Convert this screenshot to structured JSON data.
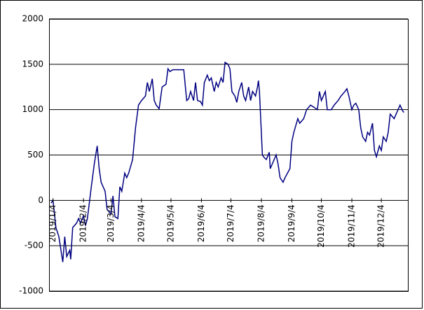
{
  "chart_data": {
    "type": "line",
    "x": [
      "2019/1/2",
      "2019/1/4",
      "2019/1/7",
      "2019/1/10",
      "2019/1/14",
      "2019/1/16",
      "2019/1/18",
      "2019/1/21",
      "2019/1/22",
      "2019/1/24",
      "2019/1/28",
      "2019/1/30",
      "2019/2/1",
      "2019/2/4",
      "2019/2/6",
      "2019/2/8",
      "2019/2/12",
      "2019/2/15",
      "2019/2/18",
      "2019/2/20",
      "2019/2/22",
      "2019/2/26",
      "2019/2/28",
      "2019/3/4",
      "2019/3/6",
      "2019/3/8",
      "2019/3/11",
      "2019/3/13",
      "2019/3/15",
      "2019/3/18",
      "2019/3/20",
      "2019/3/22",
      "2019/3/26",
      "2019/3/29",
      "2019/4/1",
      "2019/4/4",
      "2019/4/8",
      "2019/4/10",
      "2019/4/12",
      "2019/4/15",
      "2019/4/17",
      "2019/4/19",
      "2019/4/22",
      "2019/4/25",
      "2019/4/29",
      "2019/5/1",
      "2019/5/3",
      "2019/5/6",
      "2019/5/10",
      "2019/5/13",
      "2019/5/17",
      "2019/5/20",
      "2019/5/22",
      "2019/5/24",
      "2019/5/27",
      "2019/5/29",
      "2019/5/31",
      "2019/6/3",
      "2019/6/5",
      "2019/6/7",
      "2019/6/10",
      "2019/6/12",
      "2019/6/14",
      "2019/6/17",
      "2019/6/19",
      "2019/6/21",
      "2019/6/24",
      "2019/6/26",
      "2019/6/28",
      "2019/7/1",
      "2019/7/3",
      "2019/7/5",
      "2019/7/8",
      "2019/7/10",
      "2019/7/12",
      "2019/7/15",
      "2019/7/17",
      "2019/7/19",
      "2019/7/22",
      "2019/7/24",
      "2019/7/26",
      "2019/7/29",
      "2019/7/31",
      "2019/8/1",
      "2019/8/2",
      "2019/8/5",
      "2019/8/7",
      "2019/8/9",
      "2019/8/12",
      "2019/8/13",
      "2019/8/15",
      "2019/8/19",
      "2019/8/21",
      "2019/8/23",
      "2019/8/26",
      "2019/8/28",
      "2019/9/2",
      "2019/9/4",
      "2019/9/6",
      "2019/9/10",
      "2019/9/12",
      "2019/9/16",
      "2019/9/19",
      "2019/9/23",
      "2019/9/26",
      "2019/9/30",
      "2019/10/2",
      "2019/10/4",
      "2019/10/8",
      "2019/10/10",
      "2019/10/14",
      "2019/10/17",
      "2019/10/21",
      "2019/10/24",
      "2019/10/28",
      "2019/10/30",
      "2019/11/1",
      "2019/11/4",
      "2019/11/6",
      "2019/11/8",
      "2019/11/11",
      "2019/11/13",
      "2019/11/15",
      "2019/11/18",
      "2019/11/20",
      "2019/11/22",
      "2019/11/25",
      "2019/11/27",
      "2019/11/29",
      "2019/12/2",
      "2019/12/4",
      "2019/12/6",
      "2019/12/9",
      "2019/12/11",
      "2019/12/13",
      "2019/12/17",
      "2019/12/19",
      "2019/12/23",
      "2019/12/26",
      "2019/12/27"
    ],
    "series": [
      {
        "color": "#000080",
        "values": [
          -30,
          0,
          -300,
          -400,
          -680,
          -400,
          -620,
          -550,
          -650,
          -300,
          -250,
          -200,
          -250,
          -170,
          -280,
          -200,
          150,
          400,
          600,
          350,
          200,
          100,
          -100,
          -150,
          50,
          -180,
          -200,
          150,
          100,
          300,
          250,
          300,
          450,
          800,
          1050,
          1100,
          1150,
          1300,
          1200,
          1340,
          1100,
          1050,
          1010,
          1250,
          1280,
          1450,
          1420,
          1440,
          1440,
          1440,
          1440,
          1100,
          1120,
          1200,
          1100,
          1300,
          1100,
          1090,
          1050,
          1300,
          1380,
          1320,
          1350,
          1200,
          1300,
          1250,
          1350,
          1300,
          1520,
          1500,
          1450,
          1200,
          1150,
          1080,
          1200,
          1300,
          1150,
          1100,
          1250,
          1100,
          1200,
          1150,
          1250,
          1320,
          1200,
          500,
          470,
          450,
          530,
          350,
          400,
          500,
          400,
          250,
          200,
          250,
          350,
          650,
          750,
          900,
          850,
          900,
          1000,
          1050,
          1030,
          1000,
          1200,
          1100,
          1200,
          1000,
          1000,
          1050,
          1100,
          1150,
          1200,
          1230,
          1150,
          1000,
          1050,
          1070,
          1000,
          800,
          700,
          650,
          750,
          720,
          850,
          550,
          480,
          600,
          550,
          700,
          650,
          750,
          950,
          900,
          950,
          1050,
          980,
          970
        ]
      }
    ],
    "xlim": [
      "2018/12/31",
      "2019/12/31"
    ],
    "xticks": [
      "2019/1/4",
      "2019/2/4",
      "2019/3/4",
      "2019/4/4",
      "2019/5/4",
      "2019/6/4",
      "2019/7/4",
      "2019/8/4",
      "2019/9/4",
      "2019/10/4",
      "2019/11/4",
      "2019/12/4"
    ],
    "ylim": [
      -1000,
      2000
    ],
    "yticks": [
      -1000,
      -500,
      0,
      500,
      1000,
      1500,
      2000
    ],
    "grid": true
  }
}
